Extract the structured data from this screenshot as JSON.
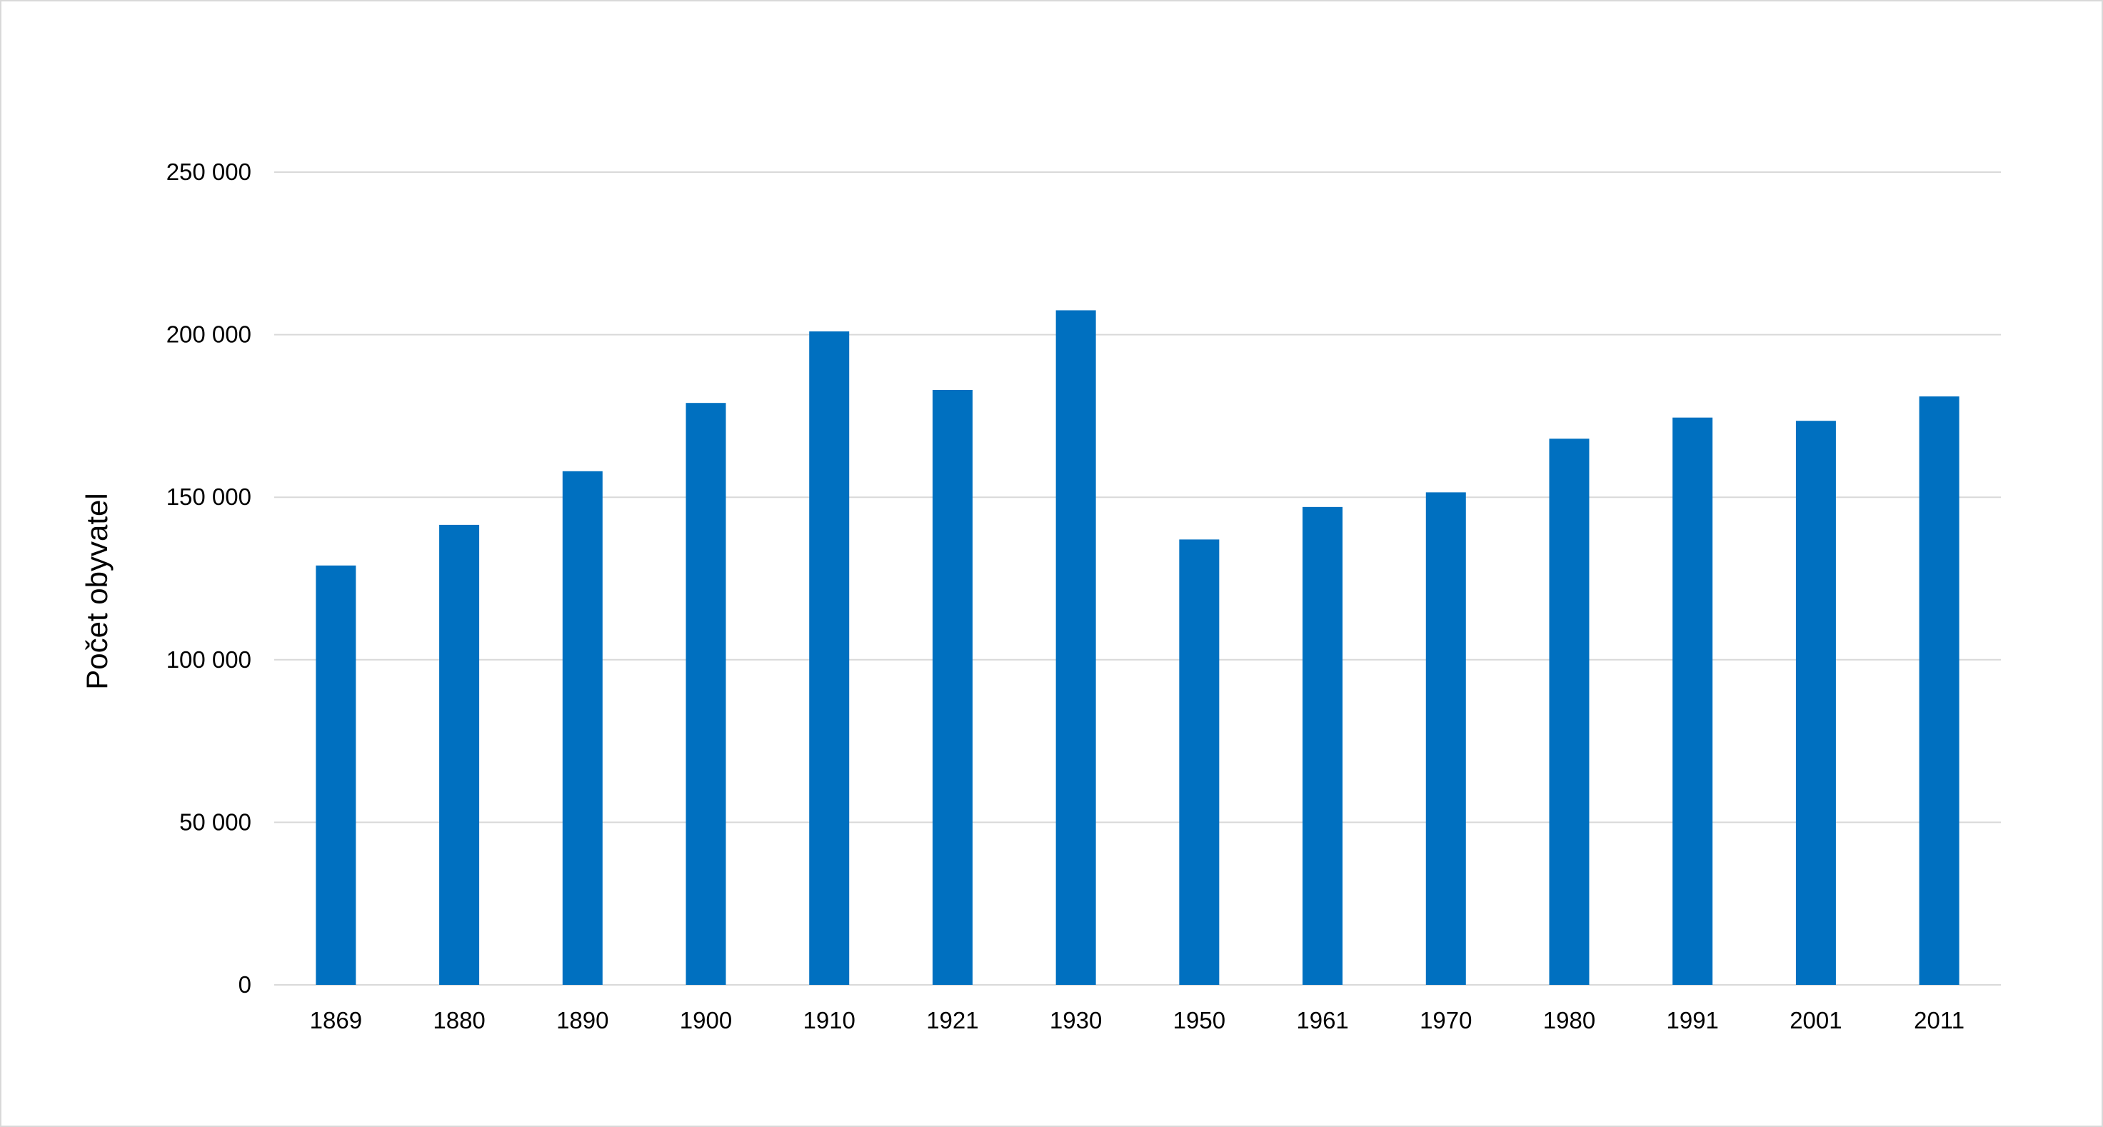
{
  "chart_data": {
    "type": "bar",
    "title": "",
    "xlabel": "",
    "ylabel": "Počet obyvatel",
    "categories": [
      "1869",
      "1880",
      "1890",
      "1900",
      "1910",
      "1921",
      "1930",
      "1950",
      "1961",
      "1970",
      "1980",
      "1991",
      "2001",
      "2011"
    ],
    "values": [
      129000,
      141500,
      158000,
      179000,
      201000,
      183000,
      207500,
      137000,
      147000,
      151500,
      168000,
      174500,
      173500,
      181000
    ],
    "ylim": [
      0,
      250000
    ],
    "yticks": [
      0,
      50000,
      100000,
      150000,
      200000,
      250000
    ],
    "ytick_labels": [
      "0",
      "50 000",
      "100 000",
      "150 000",
      "200 000",
      "250 000"
    ],
    "grid": true,
    "legend": "none",
    "colors": {
      "bar": "#0070c0",
      "gridline": "#d9d9d9",
      "frame": "#d9d9d9",
      "text": "#000000"
    }
  }
}
